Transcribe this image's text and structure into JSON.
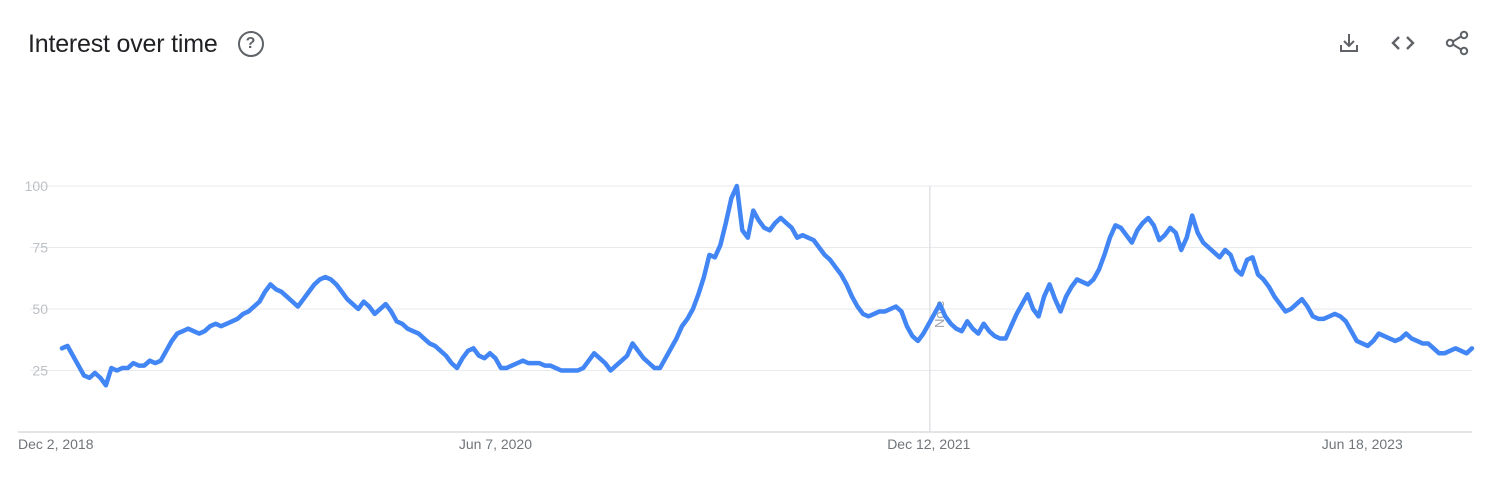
{
  "header": {
    "title": "Interest over time",
    "help_glyph": "?"
  },
  "toolbar": {
    "icons": [
      "download-icon",
      "embed-code-icon",
      "share-icon"
    ]
  },
  "colors": {
    "series": "#4285f4",
    "grid": "#e8eaed",
    "axis": "#dadce0",
    "title": "#202124"
  },
  "chart_data": {
    "type": "line",
    "title": "Interest over time",
    "ylim": [
      0,
      100
    ],
    "y_ticks": [
      25,
      50,
      75,
      100
    ],
    "grid": true,
    "x_tick_labels": [
      "Dec 2, 2018",
      "Jun 7, 2020",
      "Dec 12, 2021",
      "Jun 18, 2023"
    ],
    "x_tick_index": [
      0,
      79,
      158,
      237
    ],
    "annotation": {
      "label": "Note",
      "at_index": 158
    },
    "series": [
      {
        "values": [
          34,
          35,
          31,
          27,
          23,
          22,
          24,
          22,
          19,
          26,
          25,
          26,
          26,
          28,
          27,
          27,
          29,
          28,
          29,
          33,
          37,
          40,
          41,
          42,
          41,
          40,
          41,
          43,
          44,
          43,
          44,
          45,
          46,
          48,
          49,
          51,
          53,
          57,
          60,
          58,
          57,
          55,
          53,
          51,
          54,
          57,
          60,
          62,
          63,
          62,
          60,
          57,
          54,
          52,
          50,
          53,
          51,
          48,
          50,
          52,
          49,
          45,
          44,
          42,
          41,
          40,
          38,
          36,
          35,
          33,
          31,
          28,
          26,
          30,
          33,
          34,
          31,
          30,
          32,
          30,
          26,
          26,
          27,
          28,
          29,
          28,
          28,
          28,
          27,
          27,
          26,
          25,
          25,
          25,
          25,
          26,
          29,
          32,
          30,
          28,
          25,
          27,
          29,
          31,
          36,
          33,
          30,
          28,
          26,
          26,
          30,
          34,
          38,
          43,
          46,
          50,
          56,
          63,
          72,
          71,
          76,
          85,
          95,
          100,
          82,
          79,
          90,
          86,
          83,
          82,
          85,
          87,
          85,
          83,
          79,
          80,
          79,
          78,
          75,
          72,
          70,
          67,
          64,
          60,
          55,
          51,
          48,
          47,
          48,
          49,
          49,
          50,
          51,
          49,
          43,
          39,
          37,
          40,
          44,
          48,
          52,
          47,
          44,
          42,
          41,
          45,
          42,
          40,
          44,
          41,
          39,
          38,
          38,
          43,
          48,
          52,
          56,
          50,
          47,
          55,
          60,
          54,
          49,
          55,
          59,
          62,
          61,
          60,
          62,
          66,
          72,
          79,
          84,
          83,
          80,
          77,
          82,
          85,
          87,
          84,
          78,
          80,
          83,
          81,
          74,
          79,
          88,
          81,
          77,
          75,
          73,
          71,
          74,
          72,
          66,
          64,
          70,
          71,
          64,
          62,
          59,
          55,
          52,
          49,
          50,
          52,
          54,
          51,
          47,
          46,
          46,
          47,
          48,
          47,
          45,
          41,
          37,
          36,
          35,
          37,
          40,
          39,
          38,
          37,
          38,
          40,
          38,
          37,
          36,
          36,
          34,
          32,
          32,
          33,
          34,
          33,
          32,
          34
        ]
      }
    ]
  }
}
